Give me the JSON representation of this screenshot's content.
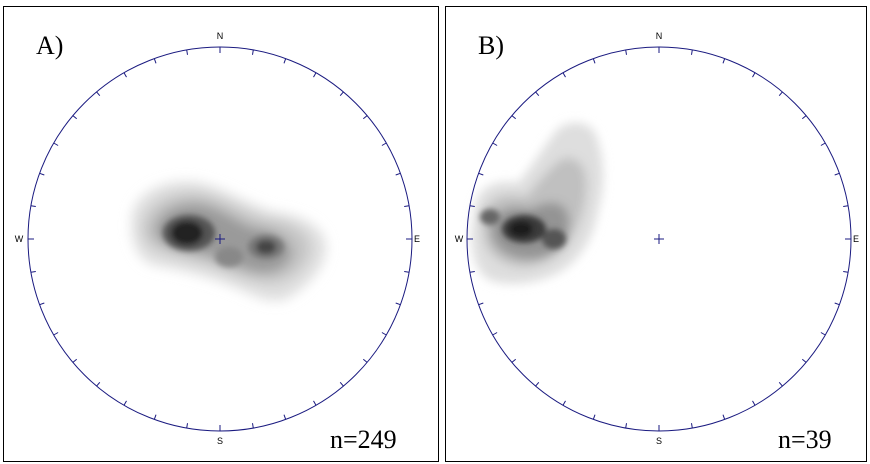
{
  "panels": [
    {
      "label": "A)",
      "count_text": "n=249",
      "directions": {
        "north": "N",
        "south": "S",
        "east": "E",
        "west": "W"
      }
    },
    {
      "label": "B)",
      "count_text": "n=39",
      "directions": {
        "north": "N",
        "south": "S",
        "east": "E",
        "west": "W"
      }
    }
  ],
  "colors": {
    "net_outline": "#1a1a80",
    "center_mark": "#1a1a80",
    "density_light": "#dcdcdc",
    "density_dark": "#1a1a1a"
  }
}
